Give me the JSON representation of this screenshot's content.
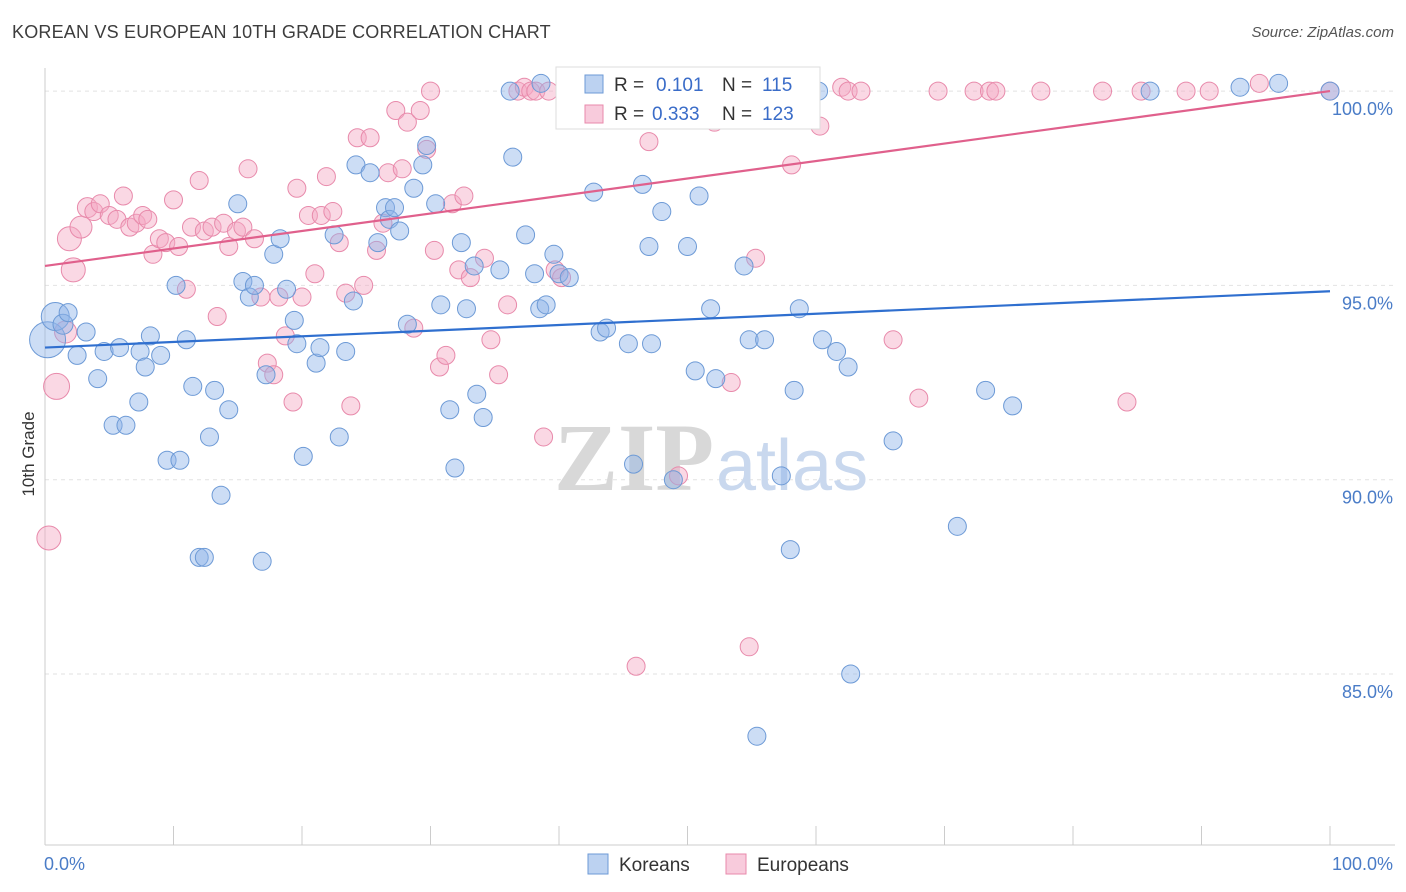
{
  "title": "KOREAN VS EUROPEAN 10TH GRADE CORRELATION CHART",
  "source": "Source: ZipAtlas.com",
  "watermark": {
    "zip": "ZIP",
    "atlas": "atlas"
  },
  "chart_data": {
    "type": "scatter",
    "ylabel": "10th Grade",
    "x_tick_labels": {
      "left": "0.0%",
      "right": "100.0%"
    },
    "y_tick_labels": [
      "100.0%",
      "95.0%",
      "90.0%",
      "85.0%"
    ],
    "xlim": [
      0,
      100
    ],
    "ylim": [
      80.6,
      100.8
    ],
    "grid": "horizontal-dashed",
    "legend_top": [
      {
        "r_label": "R =",
        "r_value": "0.101",
        "n_label": "N =",
        "n_value": "115",
        "color": "#8fb4e8"
      },
      {
        "r_label": "R =",
        "r_value": "0.333",
        "n_label": "N =",
        "n_value": "123",
        "color": "#f4a9c4"
      }
    ],
    "series": [
      {
        "name": "Koreans",
        "color": "#8fb4e8",
        "stroke": "#6d9ad6",
        "trend_color": "#2f6fcf",
        "trend": {
          "x0": 0,
          "y0": 93.4,
          "x1": 100,
          "y1": 94.85
        },
        "points": [
          [
            0.2,
            93.6,
            18
          ],
          [
            0.8,
            94.2,
            14
          ],
          [
            1.4,
            94.0,
            10
          ],
          [
            1.8,
            94.3,
            9
          ],
          [
            2.5,
            93.2,
            9
          ],
          [
            3.2,
            93.8,
            9
          ],
          [
            4.1,
            92.6,
            9
          ],
          [
            4.6,
            93.3,
            9
          ],
          [
            5.3,
            91.4,
            9
          ],
          [
            5.8,
            93.4,
            9
          ],
          [
            6.3,
            91.4,
            9
          ],
          [
            7.4,
            93.3,
            9
          ],
          [
            7.3,
            92.0,
            9
          ],
          [
            7.8,
            92.9,
            9
          ],
          [
            8.2,
            93.7,
            9
          ],
          [
            9.0,
            93.2,
            9
          ],
          [
            9.5,
            90.5,
            9
          ],
          [
            10.2,
            95.0,
            9
          ],
          [
            10.5,
            90.5,
            9
          ],
          [
            11.0,
            93.6,
            9
          ],
          [
            11.5,
            92.4,
            9
          ],
          [
            12.0,
            88.0,
            9
          ],
          [
            12.4,
            88.0,
            9
          ],
          [
            12.8,
            91.1,
            9
          ],
          [
            13.2,
            92.3,
            9
          ],
          [
            13.7,
            89.6,
            9
          ],
          [
            14.3,
            91.8,
            9
          ],
          [
            15.0,
            97.1,
            9
          ],
          [
            15.4,
            95.1,
            9
          ],
          [
            15.9,
            94.7,
            9
          ],
          [
            16.3,
            95.0,
            9
          ],
          [
            16.9,
            87.9,
            9
          ],
          [
            17.2,
            92.7,
            9
          ],
          [
            17.8,
            95.8,
            9
          ],
          [
            18.3,
            96.2,
            9
          ],
          [
            18.8,
            94.9,
            9
          ],
          [
            19.4,
            94.1,
            9
          ],
          [
            19.6,
            93.5,
            9
          ],
          [
            20.1,
            90.6,
            9
          ],
          [
            21.1,
            93.0,
            9
          ],
          [
            21.4,
            93.4,
            9
          ],
          [
            22.5,
            96.3,
            9
          ],
          [
            22.9,
            91.1,
            9
          ],
          [
            23.4,
            93.3,
            9
          ],
          [
            24.0,
            94.6,
            9
          ],
          [
            24.2,
            98.1,
            9
          ],
          [
            25.3,
            97.9,
            9
          ],
          [
            25.9,
            96.1,
            9
          ],
          [
            26.5,
            97.0,
            9
          ],
          [
            26.8,
            96.7,
            9
          ],
          [
            27.2,
            97.0,
            9
          ],
          [
            27.6,
            96.4,
            9
          ],
          [
            28.2,
            94.0,
            9
          ],
          [
            28.7,
            97.5,
            9
          ],
          [
            29.4,
            98.1,
            9
          ],
          [
            29.7,
            98.6,
            9
          ],
          [
            30.4,
            97.1,
            9
          ],
          [
            30.8,
            94.5,
            9
          ],
          [
            31.5,
            91.8,
            9
          ],
          [
            31.9,
            90.3,
            9
          ],
          [
            32.4,
            96.1,
            9
          ],
          [
            32.8,
            94.4,
            9
          ],
          [
            33.4,
            95.5,
            9
          ],
          [
            33.6,
            92.2,
            9
          ],
          [
            34.1,
            91.6,
            9
          ],
          [
            35.4,
            95.4,
            9
          ],
          [
            36.4,
            98.3,
            9
          ],
          [
            37.4,
            96.3,
            9
          ],
          [
            38.1,
            95.3,
            9
          ],
          [
            38.5,
            94.4,
            9
          ],
          [
            39.0,
            94.5,
            9
          ],
          [
            39.6,
            95.8,
            9
          ],
          [
            40.0,
            95.3,
            9
          ],
          [
            40.8,
            95.2,
            9
          ],
          [
            42.7,
            97.4,
            9
          ],
          [
            43.2,
            93.8,
            9
          ],
          [
            43.7,
            93.9,
            9
          ],
          [
            45.4,
            93.5,
            9
          ],
          [
            45.8,
            90.4,
            9
          ],
          [
            46.5,
            97.6,
            9
          ],
          [
            47.0,
            96.0,
            9
          ],
          [
            47.2,
            93.5,
            9
          ],
          [
            48.0,
            96.9,
            9
          ],
          [
            48.9,
            90.0,
            9
          ],
          [
            50.0,
            96.0,
            9
          ],
          [
            50.6,
            92.8,
            9
          ],
          [
            50.9,
            97.3,
            9
          ],
          [
            51.8,
            94.4,
            9
          ],
          [
            52.2,
            92.6,
            9
          ],
          [
            54.4,
            95.5,
            9
          ],
          [
            54.8,
            93.6,
            9
          ],
          [
            55.4,
            83.4,
            9
          ],
          [
            56.0,
            93.6,
            9
          ],
          [
            57.3,
            90.1,
            9
          ],
          [
            58.0,
            88.2,
            9
          ],
          [
            58.3,
            92.3,
            9
          ],
          [
            58.7,
            94.4,
            9
          ],
          [
            60.5,
            93.6,
            9
          ],
          [
            61.6,
            93.3,
            9
          ],
          [
            62.5,
            92.9,
            9
          ],
          [
            62.7,
            85.0,
            9
          ],
          [
            66.0,
            91.0,
            9
          ],
          [
            71.0,
            88.8,
            9
          ],
          [
            73.2,
            92.3,
            9
          ],
          [
            75.3,
            91.9,
            9
          ],
          [
            86.0,
            100.0,
            9
          ],
          [
            100.0,
            100.0,
            9
          ],
          [
            96.0,
            100.2,
            9
          ],
          [
            93.0,
            100.1,
            9
          ],
          [
            36.2,
            100.0,
            9
          ],
          [
            38.6,
            100.2,
            9
          ],
          [
            41.0,
            100.0,
            9
          ],
          [
            44.6,
            100.1,
            9
          ],
          [
            51.0,
            100.0,
            9
          ],
          [
            60.2,
            100.0,
            9
          ]
        ]
      },
      {
        "name": "Europeans",
        "color": "#f4a9c4",
        "stroke": "#e88aab",
        "trend_color": "#e0608c",
        "trend": {
          "x0": 0,
          "y0": 95.5,
          "x1": 100,
          "y1": 100.0
        },
        "points": [
          [
            0.3,
            88.5,
            12
          ],
          [
            0.9,
            92.4,
            13
          ],
          [
            1.6,
            93.8,
            11
          ],
          [
            1.9,
            96.2,
            12
          ],
          [
            2.2,
            95.4,
            12
          ],
          [
            2.8,
            96.5,
            11
          ],
          [
            3.3,
            97.0,
            10
          ],
          [
            3.8,
            96.9,
            9
          ],
          [
            4.3,
            97.1,
            9
          ],
          [
            5.0,
            96.8,
            9
          ],
          [
            5.6,
            96.7,
            9
          ],
          [
            6.1,
            97.3,
            9
          ],
          [
            6.6,
            96.5,
            9
          ],
          [
            7.1,
            96.6,
            9
          ],
          [
            7.6,
            96.8,
            9
          ],
          [
            8.0,
            96.7,
            9
          ],
          [
            8.4,
            95.8,
            9
          ],
          [
            8.9,
            96.2,
            9
          ],
          [
            9.4,
            96.1,
            9
          ],
          [
            10.0,
            97.2,
            9
          ],
          [
            10.4,
            96.0,
            9
          ],
          [
            11.0,
            94.9,
            9
          ],
          [
            11.4,
            96.5,
            9
          ],
          [
            12.0,
            97.7,
            9
          ],
          [
            12.4,
            96.4,
            9
          ],
          [
            13.0,
            96.5,
            9
          ],
          [
            13.4,
            94.2,
            9
          ],
          [
            13.9,
            96.6,
            9
          ],
          [
            14.3,
            96.0,
            9
          ],
          [
            14.9,
            96.4,
            9
          ],
          [
            15.4,
            96.5,
            9
          ],
          [
            15.8,
            98.0,
            9
          ],
          [
            16.3,
            96.2,
            9
          ],
          [
            16.8,
            94.7,
            9
          ],
          [
            17.3,
            93.0,
            9
          ],
          [
            17.8,
            92.7,
            9
          ],
          [
            18.2,
            94.7,
            9
          ],
          [
            18.7,
            93.7,
            9
          ],
          [
            19.3,
            92.0,
            9
          ],
          [
            19.6,
            97.5,
            9
          ],
          [
            20.0,
            94.7,
            9
          ],
          [
            20.5,
            96.8,
            9
          ],
          [
            21.0,
            95.3,
            9
          ],
          [
            21.5,
            96.8,
            9
          ],
          [
            21.9,
            97.8,
            9
          ],
          [
            22.4,
            96.9,
            9
          ],
          [
            22.9,
            96.1,
            9
          ],
          [
            23.4,
            94.8,
            9
          ],
          [
            23.8,
            91.9,
            9
          ],
          [
            24.3,
            98.8,
            9
          ],
          [
            24.8,
            95.0,
            9
          ],
          [
            25.3,
            98.8,
            9
          ],
          [
            25.8,
            95.9,
            9
          ],
          [
            26.3,
            96.6,
            9
          ],
          [
            26.7,
            97.9,
            9
          ],
          [
            27.3,
            99.5,
            9
          ],
          [
            27.8,
            98.0,
            9
          ],
          [
            28.2,
            99.2,
            9
          ],
          [
            28.7,
            93.9,
            9
          ],
          [
            29.2,
            99.5,
            9
          ],
          [
            29.7,
            98.5,
            9
          ],
          [
            30.3,
            95.9,
            9
          ],
          [
            30.7,
            92.9,
            9
          ],
          [
            31.2,
            93.2,
            9
          ],
          [
            31.7,
            97.1,
            9
          ],
          [
            32.2,
            95.4,
            9
          ],
          [
            32.6,
            97.3,
            9
          ],
          [
            33.1,
            95.2,
            9
          ],
          [
            34.2,
            95.7,
            9
          ],
          [
            34.7,
            93.6,
            9
          ],
          [
            35.3,
            92.7,
            9
          ],
          [
            36.0,
            94.5,
            9
          ],
          [
            36.8,
            100.0,
            9
          ],
          [
            37.3,
            100.1,
            9
          ],
          [
            37.8,
            100.0,
            9
          ],
          [
            38.2,
            100.0,
            9
          ],
          [
            38.8,
            91.1,
            9
          ],
          [
            39.2,
            100.0,
            9
          ],
          [
            39.7,
            95.4,
            9
          ],
          [
            40.2,
            95.2,
            9
          ],
          [
            40.7,
            100.1,
            9
          ],
          [
            41.3,
            100.0,
            9
          ],
          [
            41.8,
            100.0,
            9
          ],
          [
            43.0,
            100.0,
            9
          ],
          [
            43.8,
            99.5,
            9
          ],
          [
            44.5,
            100.0,
            9
          ],
          [
            45.4,
            99.9,
            9
          ],
          [
            46.0,
            85.2,
            9
          ],
          [
            46.7,
            100.0,
            9
          ],
          [
            47.0,
            98.7,
            9
          ],
          [
            47.6,
            100.0,
            9
          ],
          [
            48.3,
            99.6,
            9
          ],
          [
            49.3,
            90.1,
            9
          ],
          [
            50.2,
            100.0,
            9
          ],
          [
            51.5,
            100.0,
            9
          ],
          [
            52.1,
            99.2,
            9
          ],
          [
            53.4,
            92.5,
            9
          ],
          [
            53.9,
            100.0,
            9
          ],
          [
            54.8,
            85.7,
            9
          ],
          [
            55.3,
            95.7,
            9
          ],
          [
            56.2,
            100.1,
            9
          ],
          [
            57.5,
            100.0,
            9
          ],
          [
            58.1,
            98.1,
            9
          ],
          [
            59.0,
            100.0,
            9
          ],
          [
            60.3,
            99.1,
            9
          ],
          [
            62.0,
            100.1,
            9
          ],
          [
            62.5,
            100.0,
            9
          ],
          [
            63.5,
            100.0,
            9
          ],
          [
            66.0,
            93.6,
            9
          ],
          [
            68.0,
            92.1,
            9
          ],
          [
            69.5,
            100.0,
            9
          ],
          [
            72.3,
            100.0,
            9
          ],
          [
            73.5,
            100.0,
            9
          ],
          [
            74.0,
            100.0,
            9
          ],
          [
            77.5,
            100.0,
            9
          ],
          [
            82.3,
            100.0,
            9
          ],
          [
            84.2,
            92.0,
            9
          ],
          [
            85.3,
            100.0,
            9
          ],
          [
            88.8,
            100.0,
            9
          ],
          [
            90.6,
            100.0,
            9
          ],
          [
            100.0,
            100.0,
            9
          ],
          [
            94.5,
            100.2,
            9
          ],
          [
            30.0,
            100.0,
            9
          ]
        ]
      }
    ]
  }
}
